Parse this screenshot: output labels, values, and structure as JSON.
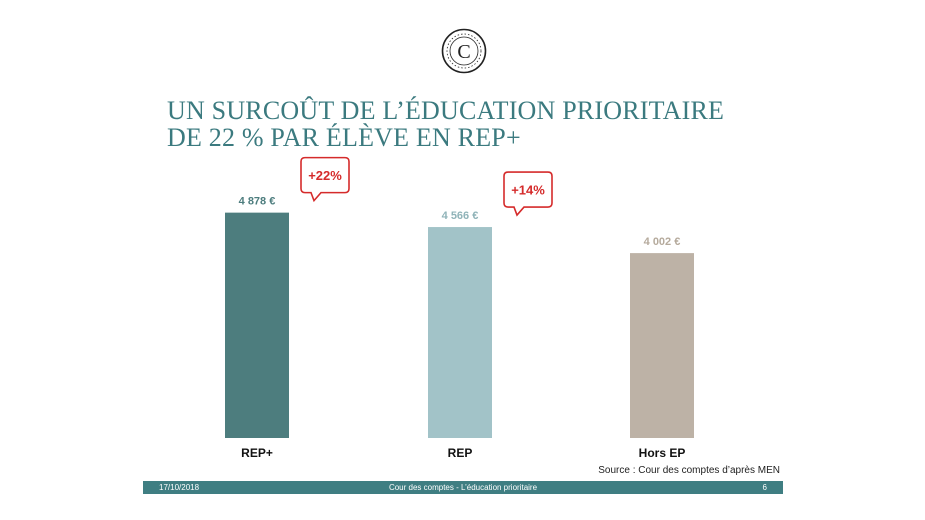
{
  "title_lines": [
    "UN SURCOÛT DE L’ÉDUCATION PRIORITAIRE",
    "DE 22 % PAR ÉLÈVE EN REP+"
  ],
  "logo_text": "C",
  "chart_data": {
    "type": "bar",
    "categories": [
      "REP+",
      "REP",
      "Hors EP"
    ],
    "values": [
      4878,
      4566,
      4002
    ],
    "value_labels": [
      "4 878 €",
      "4 566 €",
      "4 002 €"
    ],
    "bar_colors": [
      "#4d7d7e",
      "#a2c3c8",
      "#bdb2a6"
    ],
    "label_colors": [
      "#4d7d7e",
      "#8fb3b8",
      "#b5aa9c"
    ],
    "callouts": [
      {
        "category": "REP+",
        "text": "+22%"
      },
      {
        "category": "REP",
        "text": "+14%"
      }
    ],
    "callout_color": "#d52b2b",
    "title": "",
    "xlabel": "",
    "ylabel": ""
  },
  "source": "Source : Cour des comptes d’après MEN",
  "footer": {
    "date": "17/10/2018",
    "center": "Cour des comptes - L’éducation prioritaire",
    "page": "6"
  }
}
